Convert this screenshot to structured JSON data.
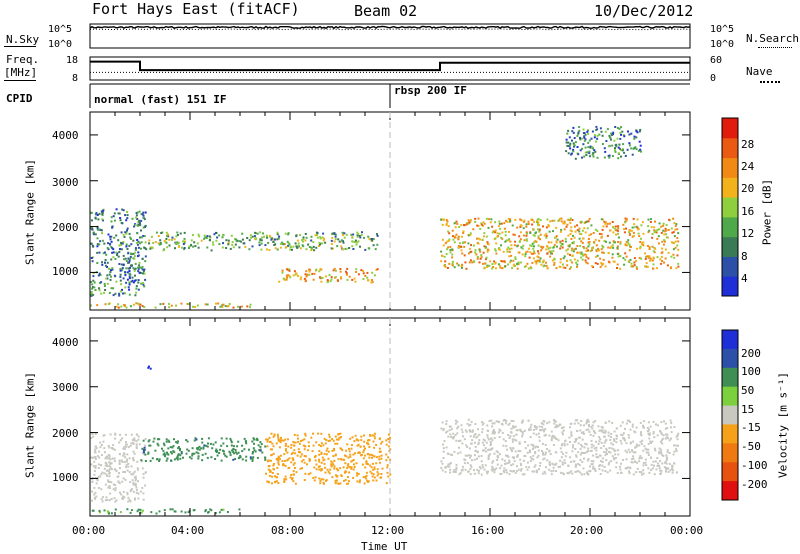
{
  "header": {
    "title": "Fort Hays East (fitACF)",
    "beam": "Beam 02",
    "date": "10/Dec/2012"
  },
  "noise_panel": {
    "left_label": "N.Sky",
    "right_label": "N.Search",
    "left_ticks": [
      "10^5",
      "10^0"
    ],
    "right_ticks": [
      "10^5",
      "10^0"
    ]
  },
  "freq_panel": {
    "left_label_1": "Freq.",
    "left_label_2": "[MHz]",
    "right_label": "Nave",
    "left_ticks": [
      "18",
      "8"
    ],
    "right_ticks": [
      "60",
      "0"
    ]
  },
  "cpid_panel": {
    "label": "CPID",
    "segments": [
      {
        "label": "normal (fast) 151 IF",
        "start_h": 0,
        "end_h": 12
      },
      {
        "label": "rbsp 200 IF",
        "start_h": 12,
        "end_h": 24
      }
    ]
  },
  "x_axis": {
    "label": "Time UT",
    "ticks": [
      "00:00",
      "04:00",
      "08:00",
      "12:00",
      "16:00",
      "20:00",
      "00:00"
    ]
  },
  "colors": {
    "power": [
      "#1f2fd8",
      "#2c4fa8",
      "#3a7a55",
      "#4fa84a",
      "#8fce3f",
      "#f2b21c",
      "#f08a15",
      "#ea5a12",
      "#e01c0c"
    ],
    "velocity": [
      "#1f2fd8",
      "#2c4fa8",
      "#3f8f55",
      "#7ccf3d",
      "#c8c8c0",
      "#f5a21a",
      "#ef7a12",
      "#e8520f",
      "#e01010"
    ],
    "ground_scatter": "#c8c8c0"
  },
  "chart_data": [
    {
      "type": "line",
      "title": "N.Sky / N.Search",
      "x": [
        0,
        24
      ],
      "xlim": [
        0,
        24
      ],
      "ylim_log10": [
        0,
        5
      ],
      "series": [
        {
          "name": "N.Sky",
          "log10_level": 4.3
        },
        {
          "name": "N.Search",
          "log10_level": 3.9
        }
      ]
    },
    {
      "type": "line",
      "title": "Freq. / Nave",
      "xlim": [
        0,
        24
      ],
      "ylim": [
        8,
        18
      ],
      "y2lim": [
        0,
        60
      ],
      "series": [
        {
          "name": "Freq.",
          "x": [
            0,
            2,
            2,
            14,
            14,
            24
          ],
          "y": [
            16,
            16,
            12.3,
            12.3,
            15.5,
            15.5
          ]
        },
        {
          "name": "Nave",
          "x": [
            0,
            24
          ],
          "y": [
            20,
            20
          ]
        }
      ]
    },
    {
      "type": "heatmap",
      "ylabel": "Slant Range [km]",
      "xlabel": "",
      "xlim": [
        0,
        24
      ],
      "ylim": [
        180,
        4500
      ],
      "yticks": [
        "1000",
        "2000",
        "3000",
        "4000"
      ],
      "colorbar": {
        "label": "Power [dB]",
        "ticks": [
          "4",
          "8",
          "12",
          "16",
          "20",
          "24",
          "28"
        ]
      },
      "regions": [
        {
          "t": [
            0,
            2.2
          ],
          "r": [
            500,
            2400
          ],
          "value": 8
        },
        {
          "t": [
            0,
            6.5
          ],
          "r": [
            250,
            350
          ],
          "value": 20
        },
        {
          "t": [
            2,
            11.5
          ],
          "r": [
            1500,
            1900
          ],
          "value": 12
        },
        {
          "t": [
            7.5,
            11.5
          ],
          "r": [
            800,
            1100
          ],
          "value": 22
        },
        {
          "t": [
            14,
            23.5
          ],
          "r": [
            1100,
            2200
          ],
          "value": 20
        },
        {
          "t": [
            19,
            22
          ],
          "r": [
            3500,
            4200
          ],
          "value": 8
        }
      ]
    },
    {
      "type": "heatmap",
      "ylabel": "Slant Range [km]",
      "xlabel": "Time UT",
      "xlim": [
        0,
        24
      ],
      "ylim": [
        180,
        4500
      ],
      "yticks": [
        "1000",
        "2000",
        "3000",
        "4000"
      ],
      "colorbar": {
        "label": "Velocity [m s⁻¹]",
        "ticks": [
          "200",
          "100",
          "50",
          "15",
          "-15",
          "-50",
          "-100",
          "-200"
        ]
      },
      "regions": [
        {
          "t": [
            0,
            2.2
          ],
          "r": [
            500,
            2000
          ],
          "value": 0
        },
        {
          "t": [
            2,
            7
          ],
          "r": [
            1400,
            1900
          ],
          "value": 60
        },
        {
          "t": [
            7,
            12
          ],
          "r": [
            900,
            2000
          ],
          "value": -50
        },
        {
          "t": [
            14,
            23.5
          ],
          "r": [
            1100,
            2300
          ],
          "value": 0
        },
        {
          "t": [
            0,
            6
          ],
          "r": [
            250,
            350
          ],
          "value": 40
        },
        {
          "t": [
            2.2,
            2.4
          ],
          "r": [
            3300,
            3500
          ],
          "value": 200
        }
      ]
    }
  ]
}
